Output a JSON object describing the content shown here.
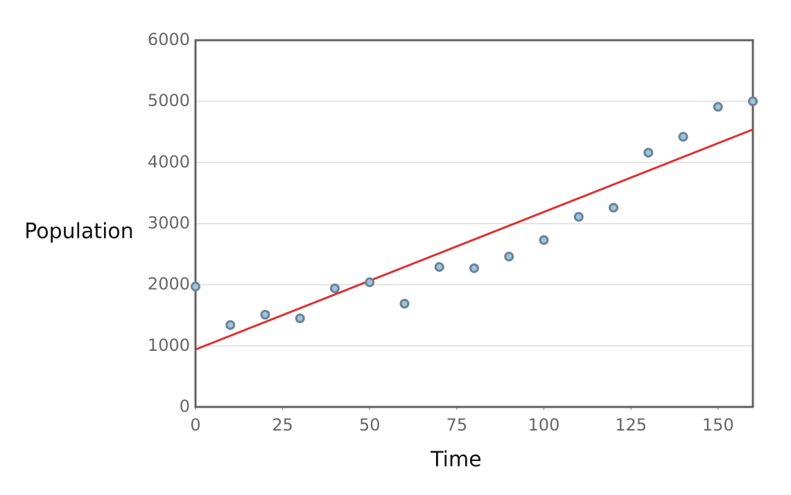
{
  "chart_data": {
    "type": "scatter",
    "x_label": "Time",
    "y_label": "Population",
    "series": [
      {
        "x": [
          0,
          10,
          20,
          30,
          40,
          50,
          60,
          70,
          80,
          90,
          100,
          110,
          120,
          130,
          140,
          150,
          160
        ],
        "values": [
          1970,
          1340,
          1510,
          1450,
          1940,
          2040,
          1690,
          2290,
          2270,
          2460,
          2730,
          3110,
          3260,
          4160,
          4420,
          4910,
          5000
        ],
        "color": "#9ec4dc",
        "edge_color": "#6a8296"
      }
    ],
    "trendline": {
      "x": [
        0,
        160
      ],
      "values": [
        940,
        4540
      ],
      "color": "#e03030"
    },
    "xlim": [
      0,
      160
    ],
    "xticks": [
      0,
      25,
      50,
      75,
      100,
      125,
      150
    ],
    "ylim": [
      0,
      6000
    ],
    "yticks": [
      0,
      1000,
      2000,
      3000,
      4000,
      5000,
      6000
    ],
    "grid": true
  }
}
